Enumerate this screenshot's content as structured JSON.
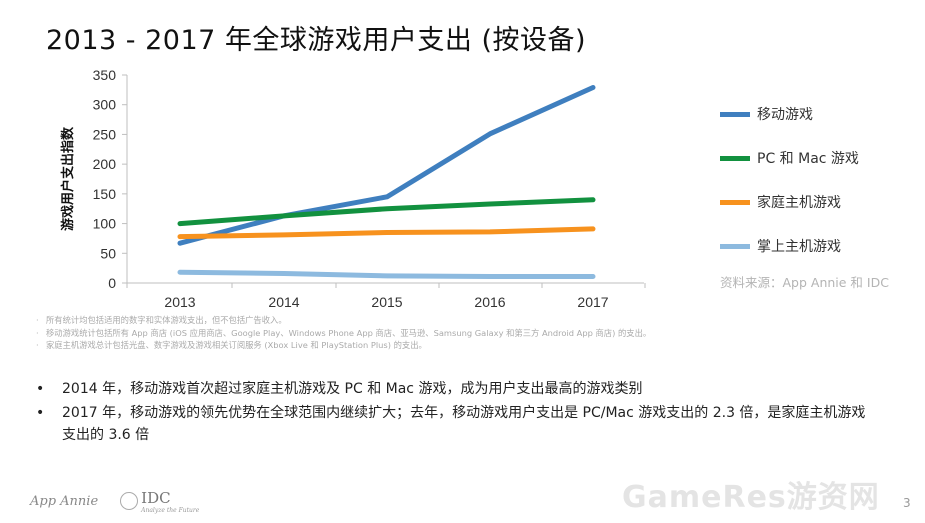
{
  "slide": {
    "title": "2013 - 2017 年全球游戏用户支出 (按设备)",
    "page_number": "3",
    "watermark": "GameRes游资网"
  },
  "chart_data": {
    "type": "line",
    "title": "2013 - 2017 年全球游戏用户支出 (按设备)",
    "xlabel": "",
    "ylabel": "游戏用户支出指数",
    "x": [
      "2013",
      "2014",
      "2015",
      "2016",
      "2017"
    ],
    "ylim": [
      0,
      350
    ],
    "yticks": [
      0,
      50,
      100,
      150,
      200,
      250,
      300,
      350
    ],
    "grid": false,
    "legend_position": "right",
    "series": [
      {
        "name": "移动游戏",
        "color": "#3f7fbf",
        "values": [
          67,
          113,
          145,
          251,
          329
        ]
      },
      {
        "name": "PC 和 Mac 游戏",
        "color": "#12913f",
        "values": [
          100,
          113,
          125,
          133,
          140
        ]
      },
      {
        "name": "家庭主机游戏",
        "color": "#f7921e",
        "values": [
          78,
          81,
          85,
          86,
          91
        ]
      },
      {
        "name": "掌上主机游戏",
        "color": "#8dbadf",
        "values": [
          18,
          16,
          12,
          11,
          11
        ]
      }
    ]
  },
  "source": "资料来源：App Annie 和 IDC",
  "notes": [
    "所有统计均包括适用的数字和实体游戏支出，但不包括广告收入。",
    "移动游戏统计包括所有 App 商店 (iOS 应用商店、Google Play、Windows Phone App 商店、亚马逊、Samsung Galaxy 和第三方 Android App 商店) 的支出。",
    "家庭主机游戏总计包括光盘、数字游戏及游戏相关订阅服务 (Xbox Live 和 PlayStation Plus) 的支出。"
  ],
  "bullets": [
    "2014 年，移动游戏首次超过家庭主机游戏及 PC 和 Mac 游戏，成为用户支出最高的游戏类别",
    "2017 年，移动游戏的领先优势在全球范围内继续扩大；去年，移动游戏用户支出是 PC/Mac 游戏支出的 2.3 倍，是家庭主机游戏支出的 3.6 倍"
  ],
  "bullet_marker": "•",
  "footer": {
    "logo_app_annie": "App Annie",
    "logo_idc": "IDC",
    "logo_idc_tagline": "Analyze the Future"
  }
}
